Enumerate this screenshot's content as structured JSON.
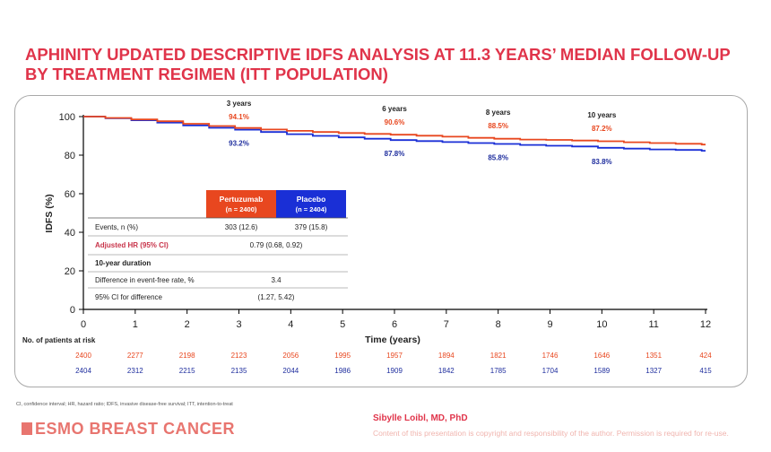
{
  "title_lines": [
    "APHINITY UPDATED DESCRIPTIVE IDFS ANALYSIS AT 11.3 YEARS’ MEDIAN FOLLOW-UP",
    "BY TREATMENT REGIMEN (ITT POPULATION)"
  ],
  "colors": {
    "title": "#e0344a",
    "pertuzumab": "#e8471f",
    "placebo": "#1a2fd6",
    "placebo_label": "#1f2e9e",
    "axis": "#000000",
    "adjusted_hr": "#c8344a",
    "logo": "#e8756f"
  },
  "chart_data": {
    "type": "line",
    "ylabel": "IDFS (%)",
    "xlabel": "Time (years)",
    "ylim": [
      0,
      100
    ],
    "xlim": [
      0,
      12
    ],
    "yticks": [
      0,
      20,
      40,
      60,
      80,
      100
    ],
    "xticks": [
      0,
      1,
      2,
      3,
      4,
      5,
      6,
      7,
      8,
      9,
      10,
      11,
      12
    ],
    "series": [
      {
        "name": "Pertuzumab",
        "color_key": "pertuzumab",
        "x": [
          0,
          0.5,
          1,
          1.5,
          2,
          2.5,
          3,
          3.5,
          4,
          4.5,
          5,
          5.5,
          6,
          6.5,
          7,
          7.5,
          8,
          8.5,
          9,
          9.5,
          10,
          10.5,
          11,
          11.5,
          12
        ],
        "y": [
          100,
          99.3,
          98.5,
          97.6,
          96.3,
          95.1,
          94.1,
          93.3,
          92.6,
          92.0,
          91.5,
          91.0,
          90.6,
          90.1,
          89.6,
          89.0,
          88.5,
          88.1,
          87.9,
          87.6,
          87.2,
          86.7,
          86.3,
          85.9,
          85.5
        ]
      },
      {
        "name": "Placebo",
        "color_key": "placebo",
        "x": [
          0,
          0.5,
          1,
          1.5,
          2,
          2.5,
          3,
          3.5,
          4,
          4.5,
          5,
          5.5,
          6,
          6.5,
          7,
          7.5,
          8,
          8.5,
          9,
          9.5,
          10,
          10.5,
          11,
          11.5,
          12
        ],
        "y": [
          100,
          99.1,
          98.1,
          96.9,
          95.4,
          94.2,
          93.2,
          92.0,
          90.9,
          90.0,
          89.2,
          88.5,
          87.8,
          87.3,
          86.8,
          86.3,
          85.8,
          85.3,
          84.9,
          84.5,
          83.8,
          83.4,
          83.0,
          82.7,
          82.3
        ]
      }
    ],
    "annotations": [
      {
        "label": "3 years",
        "x": 3,
        "pertuzumab": "94.1%",
        "placebo": "93.2%"
      },
      {
        "label": "6 years",
        "x": 6,
        "pertuzumab": "90.6%",
        "placebo": "87.8%"
      },
      {
        "label": "8 years",
        "x": 8,
        "pertuzumab": "88.5%",
        "placebo": "85.8%"
      },
      {
        "label": "10 years",
        "x": 10,
        "pertuzumab": "87.2%",
        "placebo": "83.8%"
      }
    ],
    "risk_table": {
      "label": "No. of patients at risk",
      "pertuzumab": [
        2400,
        2277,
        2198,
        2123,
        2056,
        1995,
        1957,
        1894,
        1821,
        1746,
        1646,
        1351,
        424
      ],
      "placebo": [
        2404,
        2312,
        2215,
        2135,
        2044,
        1986,
        1909,
        1842,
        1785,
        1704,
        1589,
        1327,
        415
      ]
    }
  },
  "summary_table": {
    "pertuzumab_header": {
      "name": "Pertuzumab",
      "n": "(n = 2400)"
    },
    "placebo_header": {
      "name": "Placebo",
      "n": "(n = 2404)"
    },
    "rows": {
      "events": {
        "label": "Events, n (%)",
        "pertuzumab": "303 (12.6)",
        "placebo": "379 (15.8)"
      },
      "adjusted_hr": {
        "label": "Adjusted HR (95% CI)",
        "value": "0.79 (0.68, 0.92)"
      },
      "ten_year": {
        "label": "10-year duration"
      },
      "difference": {
        "label": "Difference in event-free rate, %",
        "value": "3.4"
      },
      "ci": {
        "label": "95% CI for difference",
        "value": "(1.27, 5.42)"
      }
    }
  },
  "footer": {
    "footnote": "CI, confidence interval; HR, hazard ratio; IDFS, invasive disease-free survival; ITT, intention-to-treat",
    "logo_text": "ESMO BREAST CANCER",
    "speaker": "Sibylle Loibl, MD, PhD",
    "copyright": "Content of this presentation is copyright and responsibility of the author. Permission is required for re-use."
  }
}
